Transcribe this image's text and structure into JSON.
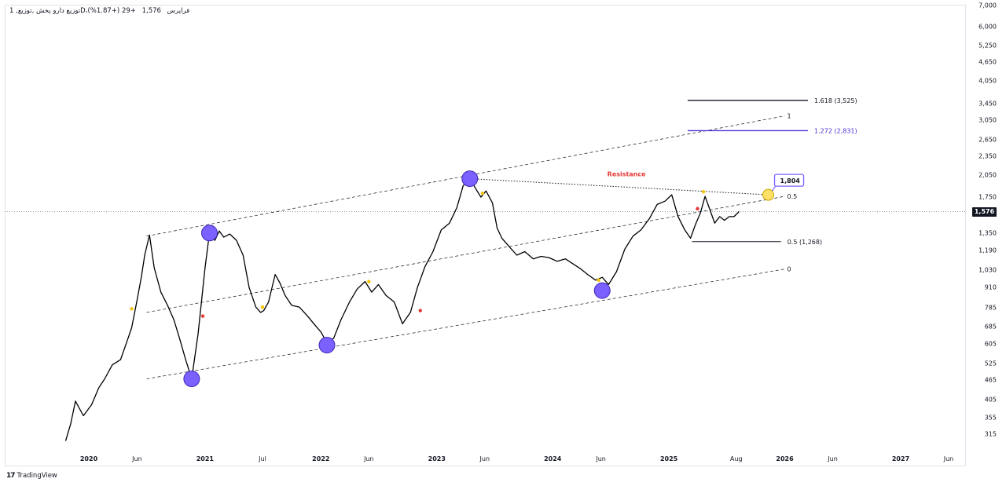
{
  "header": {
    "symbol_title": "1 ,توزیع‌ دارو پخش ,توزیع‌D،فراپرس",
    "last": "1,576",
    "change": "+29 (+1.87%)"
  },
  "price_axis": {
    "ticks": [
      "7,000",
      "6,000",
      "5,250",
      "4,650",
      "4,050",
      "3,450",
      "3,050",
      "2,650",
      "2,350",
      "2,050",
      "1,750",
      "1,350",
      "1,190",
      "1,030",
      "910",
      "785",
      "685",
      "605",
      "525",
      "465",
      "405",
      "355",
      "315"
    ],
    "last_price_label": "1,576"
  },
  "time_axis": {
    "ticks": [
      {
        "label": "2020",
        "bold": true
      },
      {
        "label": "Jun",
        "bold": false
      },
      {
        "label": "2021",
        "bold": true
      },
      {
        "label": "Jul",
        "bold": false
      },
      {
        "label": "2022",
        "bold": true
      },
      {
        "label": "Jun",
        "bold": false
      },
      {
        "label": "2023",
        "bold": true
      },
      {
        "label": "Jun",
        "bold": false
      },
      {
        "label": "2024",
        "bold": true
      },
      {
        "label": "Jun",
        "bold": false
      },
      {
        "label": "2025",
        "bold": true
      },
      {
        "label": "Aug",
        "bold": false
      },
      {
        "label": "2026",
        "bold": true
      },
      {
        "label": "Jun",
        "bold": false
      },
      {
        "label": "2027",
        "bold": true
      },
      {
        "label": "Jun",
        "bold": false
      }
    ]
  },
  "annotations": {
    "resistance": "Resistance",
    "callout_value": "1,804",
    "fib_1618": "1.618 (3,525)",
    "fib_1272": "1.272 (2,831)",
    "fib_05": "0.5 (1,268)",
    "channel_1": "1",
    "channel_05": "0.5",
    "channel_0": "0"
  },
  "colors": {
    "price_line": "#000000",
    "pivot_circle": "#7b61ff",
    "fib_1272": "#4b2fd6",
    "resistance_text": "#e53935",
    "yellow_dot": "#f5c400",
    "red_dot": "#e53935",
    "highlight_circle": "#ffe066"
  },
  "branding": {
    "logo_text": "TradingView"
  },
  "chart_data": {
    "type": "line",
    "title": "",
    "xlabel": "",
    "ylabel": "",
    "y_scale": "log",
    "ylim": [
      290,
      7100
    ],
    "xlim": [
      "2019-10-01",
      "2027-08-01"
    ],
    "series": [
      {
        "x": [
          "2019-10-20",
          "2019-11-05",
          "2019-11-20",
          "2019-12-15",
          "2020-01-10",
          "2020-02-01",
          "2020-02-20",
          "2020-03-15",
          "2020-04-10",
          "2020-05-01",
          "2020-05-15",
          "2020-06-01",
          "2020-06-15",
          "2020-06-25",
          "2020-07-10",
          "2020-07-25",
          "2020-08-15",
          "2020-09-05",
          "2020-09-25",
          "2020-10-15",
          "2020-11-01",
          "2020-11-20",
          "2020-12-10",
          "2021-01-01",
          "2021-01-15",
          "2021-02-01",
          "2021-02-15",
          "2021-03-01",
          "2021-03-20",
          "2021-04-10",
          "2021-05-01",
          "2021-05-20",
          "2021-06-10",
          "2021-06-25",
          "2021-07-05",
          "2021-07-20",
          "2021-08-10",
          "2021-08-25",
          "2021-09-10",
          "2021-10-01",
          "2021-10-25",
          "2021-11-20",
          "2021-12-10",
          "2022-01-01",
          "2022-01-20",
          "2022-02-10",
          "2022-03-05",
          "2022-04-01",
          "2022-04-25",
          "2022-05-20",
          "2022-06-10",
          "2022-07-01",
          "2022-07-25",
          "2022-08-20",
          "2022-09-15",
          "2022-10-10",
          "2022-11-01",
          "2022-11-25",
          "2022-12-20",
          "2023-01-15",
          "2023-02-10",
          "2023-03-05",
          "2023-03-25",
          "2023-04-15",
          "2023-05-05",
          "2023-05-20",
          "2023-06-05",
          "2023-06-25",
          "2023-07-10",
          "2023-07-25",
          "2023-08-15",
          "2023-09-10",
          "2023-10-05",
          "2023-11-01",
          "2023-11-25",
          "2023-12-20",
          "2024-01-15",
          "2024-02-10",
          "2024-03-05",
          "2024-03-30",
          "2024-04-20",
          "2024-05-15",
          "2024-06-05",
          "2024-06-25",
          "2024-07-20",
          "2024-08-15",
          "2024-09-10",
          "2024-10-05",
          "2024-11-01",
          "2024-11-25",
          "2024-12-20",
          "2025-01-10",
          "2025-01-30",
          "2025-02-20",
          "2025-03-10",
          "2025-03-25",
          "2025-04-10",
          "2025-04-25",
          "2025-05-10",
          "2025-05-25",
          "2025-06-10",
          "2025-06-25",
          "2025-07-10",
          "2025-07-25",
          "2025-08-10"
        ],
        "y": [
          300,
          340,
          400,
          360,
          390,
          440,
          470,
          520,
          540,
          620,
          680,
          830,
          990,
          1150,
          1330,
          1050,
          880,
          800,
          720,
          620,
          540,
          470,
          650,
          1050,
          1350,
          1280,
          1370,
          1310,
          1340,
          1280,
          1150,
          910,
          790,
          760,
          770,
          820,
          1000,
          940,
          860,
          800,
          790,
          740,
          700,
          660,
          610,
          630,
          720,
          820,
          900,
          950,
          880,
          930,
          860,
          820,
          700,
          760,
          910,
          1060,
          1180,
          1380,
          1450,
          1620,
          1900,
          2000,
          1850,
          1750,
          1830,
          1680,
          1400,
          1300,
          1230,
          1150,
          1180,
          1120,
          1140,
          1130,
          1100,
          1120,
          1080,
          1040,
          1000,
          960,
          980,
          930,
          1020,
          1200,
          1320,
          1380,
          1500,
          1660,
          1700,
          1780,
          1520,
          1380,
          1300,
          1430,
          1560,
          1760,
          1600,
          1450,
          1520,
          1480,
          1520,
          1520,
          1576
        ]
      }
    ],
    "pivots": [
      {
        "x": "2020-11-20",
        "y": 470
      },
      {
        "x": "2021-01-15",
        "y": 1350
      },
      {
        "x": "2022-01-20",
        "y": 600
      },
      {
        "x": "2023-04-15",
        "y": 2000
      },
      {
        "x": "2024-06-05",
        "y": 890
      }
    ],
    "channel": {
      "x0": "2020-07-01",
      "x1": "2026-01-01",
      "lower": [
        470,
        1040
      ],
      "middle": [
        760,
        1760
      ],
      "upper": [
        1320,
        3150
      ]
    },
    "resistance_line": {
      "x": [
        "2023-04-15",
        "2025-11-10"
      ],
      "y": [
        2000,
        1780
      ]
    },
    "fib_levels": [
      {
        "label": "1.618",
        "value": 3525,
        "x": [
          "2025-03-01",
          "2026-03-15"
        ]
      },
      {
        "label": "1.272",
        "value": 2831,
        "x": [
          "2025-03-01",
          "2026-03-15"
        ]
      },
      {
        "label": "0.5",
        "value": 1268,
        "x": [
          "2025-03-15",
          "2025-12-20"
        ]
      }
    ],
    "last_price": 1576
  }
}
